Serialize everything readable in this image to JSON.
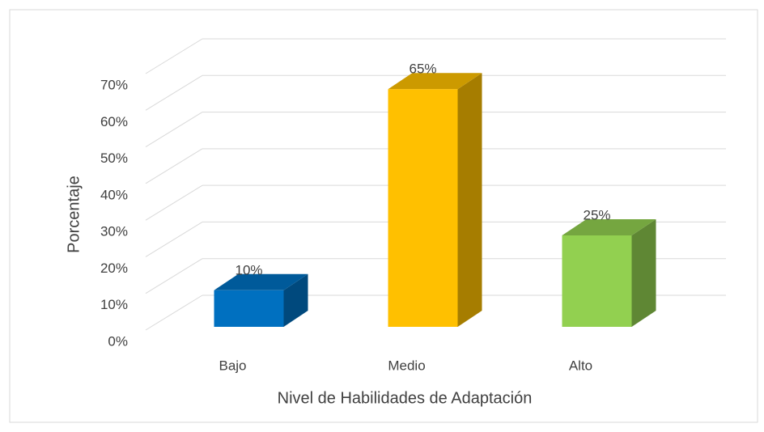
{
  "chart_data": {
    "type": "bar3d",
    "x_label": "Nivel de Habilidades de Adaptación",
    "y_label": "Porcentaje",
    "categories": [
      "Bajo",
      "Medio",
      "Alto"
    ],
    "values": [
      10,
      65,
      25
    ],
    "value_labels": [
      "10%",
      "65%",
      "25%"
    ],
    "colors": [
      "#0070c0",
      "#ffc000",
      "#92d050"
    ],
    "ylim": [
      0,
      70
    ],
    "yticks": [
      {
        "value": 0,
        "label": "0%"
      },
      {
        "value": 10,
        "label": "10%"
      },
      {
        "value": 20,
        "label": "20%"
      },
      {
        "value": 30,
        "label": "30%"
      },
      {
        "value": 40,
        "label": "40%"
      },
      {
        "value": 50,
        "label": "50%"
      },
      {
        "value": 60,
        "label": "60%"
      },
      {
        "value": 70,
        "label": "70%"
      }
    ],
    "grid": true
  }
}
